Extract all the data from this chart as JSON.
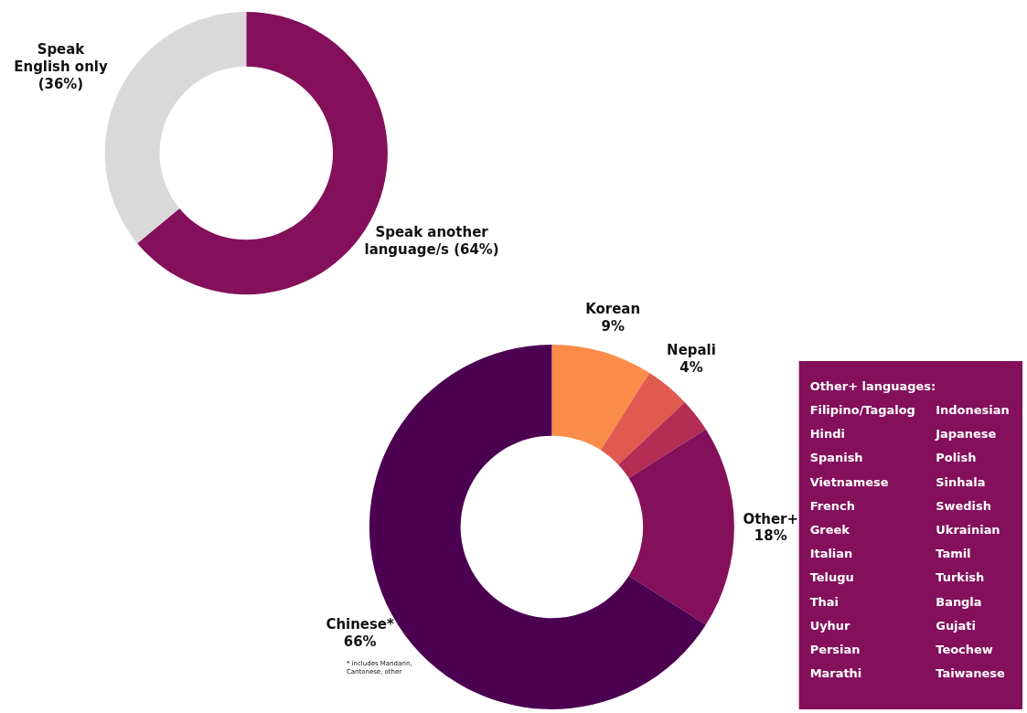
{
  "chart_data": [
    {
      "type": "donut",
      "categories": [
        "Speak another language/s",
        "Speak English only"
      ],
      "values": [
        64,
        36
      ],
      "colors": [
        "#84105c",
        "#d9d9d9"
      ],
      "value_labels": [
        "(64%)",
        "(36%)"
      ]
    },
    {
      "type": "donut",
      "categories": [
        "Korean",
        "Nepali",
        null,
        "Other+",
        "Chinese*"
      ],
      "values": [
        9,
        4,
        3,
        18,
        66
      ],
      "colors": [
        "#fb8c4a",
        "#e05a50",
        "#b32d55",
        "#84105c",
        "#4b0150"
      ],
      "value_labels": [
        "9%",
        "4%",
        null,
        "18%",
        "66%"
      ],
      "annotations": [
        "* includes Mandarin, Cantonese, other"
      ]
    },
    {
      "type": "other",
      "title": "Other+ languages:",
      "color": "#84105c",
      "annotations": [
        "Filipino/Tagalog",
        "Hindi",
        "Spanish",
        "Vietnamese",
        "French",
        "Greek",
        "Italian",
        "Telugu",
        "Thai",
        "Uyhur",
        "Persian",
        "Marathi",
        "Indonesian",
        "Japanese",
        "Polish",
        "Sinhala",
        "Swedish",
        "Ukrainian",
        "Tamil",
        "Turkish",
        "Bangla",
        "Gujati",
        "Teochew",
        "Taiwanese"
      ]
    }
  ]
}
